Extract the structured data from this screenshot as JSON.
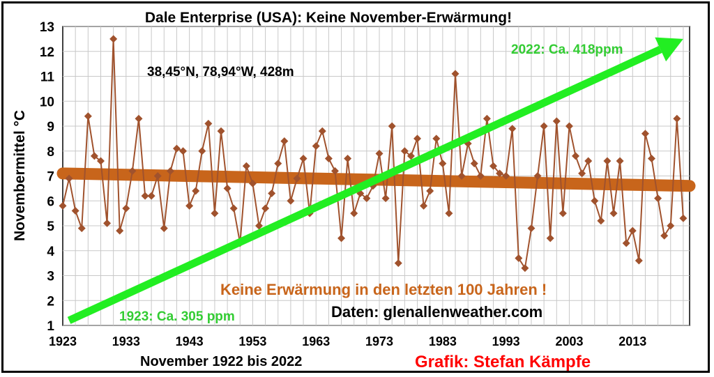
{
  "chart_data": {
    "type": "line",
    "title": "Dale Enterprise (USA): Keine November-Erwärmung!",
    "location": "38,45°N, 78,94°W, 428m",
    "xlabel": "November 1922 bis 2022",
    "ylabel": "Novembermittel °C",
    "xlim": [
      1923,
      2022
    ],
    "ylim": [
      1,
      13
    ],
    "x_ticks": [
      "1923",
      "1933",
      "1943",
      "1953",
      "1963",
      "1973",
      "1983",
      "1993",
      "2003",
      "2013"
    ],
    "y_ticks": [
      "1",
      "2",
      "3",
      "4",
      "5",
      "6",
      "7",
      "8",
      "9",
      "10",
      "11",
      "12",
      "13"
    ],
    "grid": true,
    "series": [
      {
        "x_start": 1923,
        "values": [
          5.8,
          6.9,
          5.6,
          4.9,
          9.4,
          7.8,
          7.6,
          5.1,
          12.5,
          4.8,
          5.7,
          7.2,
          9.3,
          6.2,
          6.2,
          7.0,
          4.9,
          7.2,
          8.1,
          8.0,
          5.8,
          6.4,
          8.0,
          9.1,
          5.5,
          8.8,
          6.5,
          5.7,
          4.3,
          7.4,
          6.7,
          5.0,
          5.7,
          6.3,
          7.5,
          8.4,
          6.0,
          6.9,
          7.7,
          5.5,
          8.2,
          8.8,
          7.7,
          7.2,
          4.5,
          7.7,
          5.5,
          6.3,
          6.1,
          6.6,
          7.9,
          6.1,
          9.0,
          3.5,
          8.0,
          7.8,
          8.5,
          5.8,
          6.4,
          8.5,
          7.5,
          5.5,
          11.1,
          7.0,
          8.3,
          7.5,
          7.0,
          9.3,
          7.4,
          7.1,
          7.0,
          8.9,
          3.7,
          3.3,
          4.9,
          7.0,
          9.0,
          4.5,
          9.2,
          5.5,
          9.0,
          7.8,
          7.1,
          7.6,
          6.0,
          5.2,
          7.6,
          5.5,
          7.6,
          4.3,
          4.8,
          3.6,
          8.7,
          7.7,
          6.1,
          4.6,
          5.0,
          9.3,
          5.3
        ],
        "color": "#a0522d"
      }
    ],
    "trend_line": {
      "x": [
        1923,
        2022
      ],
      "y": [
        7.1,
        6.6
      ],
      "color": "#c8651b"
    },
    "co2_arrow": {
      "x": [
        1924,
        2021
      ],
      "y": [
        1.2,
        12.5
      ],
      "color": "#22ee22"
    },
    "annotations": {
      "co2_start": "1923: Ca. 305 ppm",
      "co2_end": "2022: Ca. 418ppm",
      "no_warming": "Keine Erwärmung in den letzten 100 Jahren !",
      "source": "Daten: glenallenweather.com",
      "credit": "Grafik: Stefan Kämpfe"
    },
    "colors": {
      "annotation_green": "#33cc33",
      "annotation_orange": "#c8651b",
      "credit_red": "#ff0000"
    }
  }
}
